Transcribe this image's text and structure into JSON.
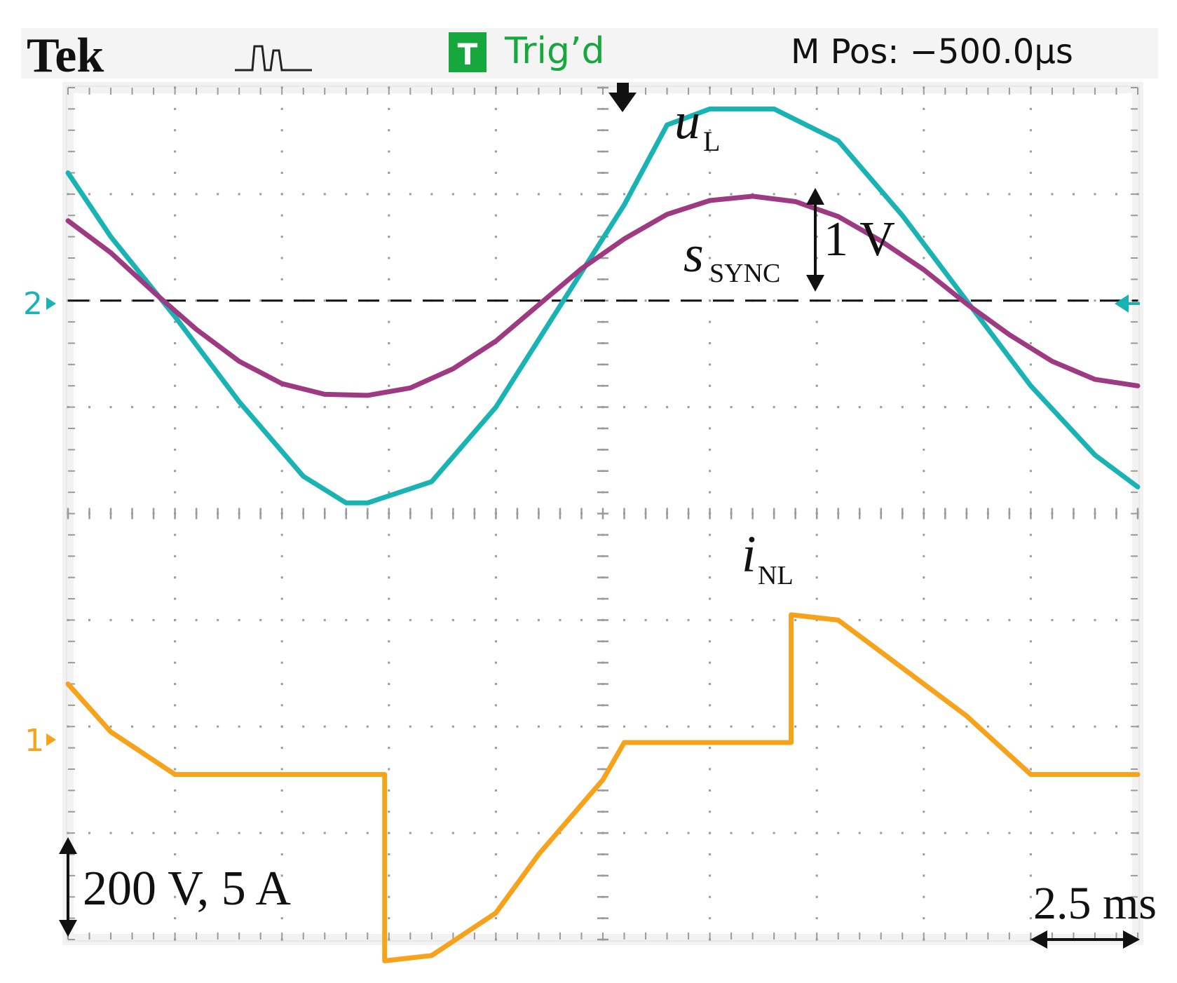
{
  "header": {
    "brand": "Tek",
    "trigger_glyph": "T",
    "trigger_status": "Trig’d",
    "position_readout": "M Pos: −500.0µs"
  },
  "channels": {
    "ch1_marker": "1",
    "ch2_marker": "2"
  },
  "labels": {
    "uL_main": "u",
    "uL_sub": "L",
    "sync_main": "s",
    "sync_sub": "SYNC",
    "iNL_main": "i",
    "iNL_sub": "NL",
    "sync_amplitude": "1 V",
    "vertical_scale": "200 V, 5 A",
    "time_scale": "2.5 ms"
  },
  "colors": {
    "background": "#ffffff",
    "grid_frame": "#f2f2f2",
    "grid_dots": "#9a9a9a",
    "uL": "#1ab3b3",
    "s_sync": "#9e3a82",
    "iNL": "#f7a21b",
    "trig_green": "#16a83c",
    "ch2_marker": "#1ab3b3",
    "ch1_marker": "#f7a21b",
    "annotation": "#111111"
  },
  "chart_data": {
    "type": "line",
    "x_unit": "ms",
    "xlim": [
      0,
      25
    ],
    "ylim": [
      -4,
      4
    ],
    "grid": true,
    "divisions": {
      "x": 10,
      "y": 8
    },
    "reference_lines": [
      {
        "name": "ch2_ground",
        "y": 2
      }
    ],
    "series": [
      {
        "name": "uL",
        "color": "#1ab3b3",
        "x": [
          0,
          1,
          2.5,
          4,
          5.5,
          6.5,
          7,
          8.5,
          10,
          11.5,
          13,
          14,
          15,
          16.5,
          18,
          19.5,
          21,
          22.5,
          24,
          25
        ],
        "y": [
          3.2,
          2.6,
          1.85,
          1.05,
          0.35,
          0.1,
          0.1,
          0.3,
          1.0,
          1.95,
          2.9,
          3.65,
          3.8,
          3.8,
          3.5,
          2.8,
          2.0,
          1.2,
          0.55,
          0.25
        ]
      },
      {
        "name": "sSYNC",
        "color": "#9e3a82",
        "x": [
          0,
          1,
          2,
          3,
          4,
          5,
          6,
          7,
          8,
          9,
          10,
          11,
          12,
          13,
          14,
          15,
          16,
          17,
          18,
          19,
          20,
          21,
          22,
          23,
          24,
          25
        ],
        "y": [
          2.75,
          2.45,
          2.08,
          1.73,
          1.43,
          1.22,
          1.12,
          1.11,
          1.18,
          1.36,
          1.62,
          1.96,
          2.3,
          2.58,
          2.81,
          2.94,
          2.98,
          2.93,
          2.79,
          2.56,
          2.29,
          1.97,
          1.68,
          1.43,
          1.26,
          1.2
        ]
      },
      {
        "name": "iNL",
        "color": "#f7a21b",
        "x": [
          0,
          1,
          2.5,
          5,
          7.4,
          7.4,
          8.5,
          10,
          11,
          12.5,
          13,
          16,
          16.9,
          16.9,
          18,
          19.5,
          21,
          22.5,
          23,
          25
        ],
        "y": [
          -1.6,
          -2.05,
          -2.45,
          -2.45,
          -2.45,
          -4.2,
          -4.15,
          -3.75,
          -3.2,
          -2.5,
          -2.15,
          -2.15,
          -2.15,
          -0.95,
          -1.0,
          -1.45,
          -1.9,
          -2.45,
          -2.45,
          -2.45
        ]
      }
    ]
  }
}
